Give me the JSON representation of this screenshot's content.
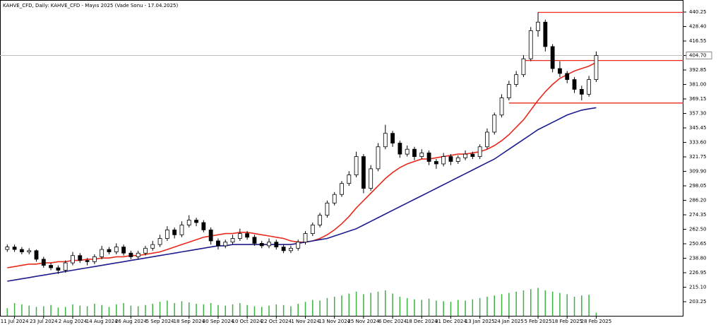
{
  "chart_data": {
    "type": "candlestick",
    "title": "KAHVE_CFD, Daily: KAHVE_CFD - Mayıs 2025 (Vade Sonu - 17.04.2025)",
    "up_color": "#ffffff",
    "down_color": "#000000",
    "candles": [
      [
        246,
        250,
        244,
        248
      ],
      [
        248,
        250,
        244,
        246
      ],
      [
        246,
        248,
        242,
        244
      ],
      [
        244,
        247,
        242,
        245
      ],
      [
        245,
        246,
        236,
        238
      ],
      [
        238,
        240,
        231,
        233
      ],
      [
        233,
        235,
        229,
        231
      ],
      [
        231,
        233,
        226,
        229
      ],
      [
        229,
        237,
        227,
        235
      ],
      [
        235,
        244,
        233,
        241
      ],
      [
        241,
        243,
        235,
        237
      ],
      [
        237,
        239,
        233,
        236
      ],
      [
        236,
        242,
        234,
        240
      ],
      [
        240,
        249,
        238,
        246
      ],
      [
        246,
        248,
        242,
        244
      ],
      [
        244,
        251,
        242,
        248
      ],
      [
        248,
        250,
        241,
        243
      ],
      [
        243,
        245,
        238,
        240
      ],
      [
        240,
        245,
        238,
        243
      ],
      [
        243,
        249,
        241,
        247
      ],
      [
        247,
        253,
        245,
        250
      ],
      [
        250,
        258,
        248,
        255
      ],
      [
        255,
        265,
        253,
        262
      ],
      [
        262,
        264,
        255,
        258
      ],
      [
        258,
        269,
        256,
        266
      ],
      [
        266,
        274,
        264,
        270
      ],
      [
        270,
        272,
        265,
        268
      ],
      [
        268,
        270,
        260,
        262
      ],
      [
        262,
        264,
        250,
        253
      ],
      [
        253,
        255,
        246,
        249
      ],
      [
        249,
        254,
        247,
        252
      ],
      [
        252,
        258,
        250,
        255
      ],
      [
        255,
        263,
        253,
        259
      ],
      [
        259,
        261,
        254,
        256
      ],
      [
        256,
        258,
        249,
        251
      ],
      [
        251,
        253,
        247,
        249
      ],
      [
        249,
        255,
        247,
        252
      ],
      [
        252,
        254,
        246,
        248
      ],
      [
        248,
        250,
        243,
        245
      ],
      [
        245,
        249,
        243,
        247
      ],
      [
        247,
        254,
        245,
        252
      ],
      [
        252,
        261,
        250,
        259
      ],
      [
        259,
        268,
        257,
        266
      ],
      [
        266,
        276,
        264,
        274
      ],
      [
        274,
        286,
        272,
        284
      ],
      [
        284,
        293,
        282,
        291
      ],
      [
        291,
        302,
        289,
        300
      ],
      [
        300,
        310,
        298,
        307
      ],
      [
        307,
        326,
        305,
        322
      ],
      [
        322,
        324,
        292,
        296
      ],
      [
        296,
        315,
        294,
        312
      ],
      [
        312,
        333,
        310,
        330
      ],
      [
        330,
        348,
        328,
        341
      ],
      [
        341,
        343,
        330,
        333
      ],
      [
        333,
        335,
        321,
        324
      ],
      [
        324,
        331,
        322,
        328
      ],
      [
        328,
        330,
        319,
        322
      ],
      [
        322,
        328,
        320,
        325
      ],
      [
        325,
        327,
        315,
        318
      ],
      [
        318,
        320,
        312,
        316
      ],
      [
        316,
        325,
        314,
        322
      ],
      [
        322,
        324,
        315,
        318
      ],
      [
        318,
        323,
        316,
        321
      ],
      [
        321,
        327,
        319,
        324
      ],
      [
        324,
        326,
        320,
        322
      ],
      [
        322,
        332,
        320,
        330
      ],
      [
        330,
        345,
        328,
        342
      ],
      [
        342,
        358,
        340,
        356
      ],
      [
        356,
        373,
        354,
        370
      ],
      [
        370,
        384,
        368,
        381
      ],
      [
        381,
        392,
        379,
        389
      ],
      [
        389,
        405,
        387,
        402
      ],
      [
        402,
        428,
        400,
        425
      ],
      [
        425,
        440,
        420,
        432
      ],
      [
        432,
        434,
        408,
        412
      ],
      [
        412,
        414,
        391,
        394
      ],
      [
        394,
        400,
        387,
        390
      ],
      [
        390,
        392,
        382,
        385
      ],
      [
        385,
        387,
        374,
        377
      ],
      [
        377,
        380,
        368,
        373
      ],
      [
        373,
        388,
        371,
        385
      ],
      [
        385,
        408,
        383,
        404.7
      ]
    ],
    "lines": [
      {
        "color": "#e8291c",
        "values": [
          231,
          232,
          233,
          234,
          234,
          235,
          235,
          236,
          236,
          237,
          237,
          238,
          238,
          239,
          239,
          240,
          240,
          241,
          241,
          242,
          243,
          244,
          246,
          248,
          250,
          252,
          254,
          256,
          257,
          258,
          259,
          259,
          260,
          260,
          259,
          258,
          257,
          256,
          255,
          253,
          252,
          252,
          253,
          255,
          258,
          262,
          267,
          273,
          280,
          286,
          292,
          298,
          304,
          309,
          313,
          316,
          318,
          320,
          320,
          321,
          322,
          323,
          324,
          324,
          325,
          326,
          328,
          331,
          335,
          340,
          346,
          352,
          360,
          368,
          375,
          381,
          386,
          389,
          392,
          394,
          396,
          399
        ]
      },
      {
        "color": "#1c1c8c",
        "values": [
          220,
          221,
          222,
          223,
          224,
          225,
          226,
          227,
          228,
          229,
          230,
          231,
          232,
          233,
          234,
          235,
          236,
          237,
          238,
          239,
          240,
          241,
          242,
          243,
          244,
          245,
          246,
          247,
          248,
          249,
          249,
          250,
          250,
          250,
          250,
          250,
          250,
          250,
          250,
          250,
          251,
          252,
          253,
          254,
          255,
          257,
          259,
          261,
          263,
          266,
          269,
          272,
          275,
          278,
          281,
          284,
          287,
          290,
          293,
          296,
          299,
          302,
          305,
          308,
          311,
          314,
          317,
          320,
          324,
          328,
          332,
          336,
          340,
          344,
          347,
          350,
          353,
          356,
          358,
          360,
          361,
          362
        ]
      }
    ],
    "volume": {
      "color": "#3cb043",
      "ylim": [
        0,
        50
      ],
      "values": [
        12,
        20,
        18,
        16,
        14,
        15,
        17,
        13,
        14,
        18,
        16,
        15,
        19,
        17,
        14,
        18,
        20,
        16,
        15,
        17,
        19,
        22,
        24,
        20,
        23,
        21,
        19,
        18,
        20,
        17,
        16,
        18,
        20,
        17,
        15,
        14,
        16,
        18,
        17,
        15,
        19,
        22,
        25,
        24,
        28,
        30,
        32,
        35,
        38,
        34,
        36,
        38,
        40,
        35,
        30,
        28,
        26,
        25,
        27,
        24,
        23,
        22,
        25,
        24,
        26,
        28,
        30,
        32,
        34,
        36,
        38,
        40,
        42,
        44,
        40,
        38,
        36,
        34,
        30,
        32,
        33,
        5
      ]
    },
    "levels": {
      "color": "#e8291c",
      "items": [
        {
          "value": 440,
          "start": 73
        },
        {
          "value": 400.6,
          "start": 71
        },
        {
          "value": 365.8,
          "start": 69
        }
      ]
    },
    "last_price_color": "#c0c0c0",
    "ylim": [
      191.7,
      450.1
    ],
    "yticks": [
      440.25,
      {
        "value": 428.4,
        "label": "428.40"
      },
      416.55,
      {
        "value": 404.7,
        "label": "404.70"
      },
      392.85,
      {
        "value": 381,
        "label": "381.00"
      },
      369.15,
      {
        "value": 357.3,
        "label": "357.30"
      },
      345.45,
      {
        "value": 333.6,
        "label": "333.60"
      },
      321.75,
      {
        "value": 309.9,
        "label": "309.90"
      },
      298.05,
      {
        "value": 286.2,
        "label": "286.20"
      },
      274.35,
      {
        "value": 262.5,
        "label": "262.50"
      },
      250.65,
      {
        "value": 238.8,
        "label": "238.80"
      },
      226.95,
      {
        "value": 215.1,
        "label": "215.10"
      },
      203.25
    ],
    "xlim": [
      -1,
      93
    ],
    "xticks": [
      {
        "value": 1,
        "label": "11 Jul 2024"
      },
      {
        "value": 5,
        "label": "23 Jul 2024"
      },
      {
        "value": 9,
        "label": "2 Aug 2024"
      },
      {
        "value": 13,
        "label": "14 Aug 2024"
      },
      {
        "value": 17,
        "label": "26 Aug 2024"
      },
      {
        "value": 21,
        "label": "5 Sep 2024"
      },
      {
        "value": 25,
        "label": "18 Sep 2024"
      },
      {
        "value": 29,
        "label": "30 Sep 2024"
      },
      {
        "value": 33,
        "label": "10 Oct 2024"
      },
      {
        "value": 37,
        "label": "22 Oct 2024"
      },
      {
        "value": 41,
        "label": "1 Nov 2024"
      },
      {
        "value": 45,
        "label": "13 Nov 2024"
      },
      {
        "value": 49,
        "label": "25 Nov 2024"
      },
      {
        "value": 53,
        "label": "6 Dec 2024"
      },
      {
        "value": 57,
        "label": "18 Dec 2024"
      },
      {
        "value": 61,
        "label": "31 Dec 2024"
      },
      {
        "value": 65,
        "label": "13 Jan 2025"
      },
      {
        "value": 69,
        "label": "24 Jan 2025"
      },
      {
        "value": 73,
        "label": "5 Feb 2025"
      },
      {
        "value": 77,
        "label": "18 Feb 2025"
      },
      {
        "value": 81,
        "label": "28 Feb 2025"
      }
    ]
  }
}
